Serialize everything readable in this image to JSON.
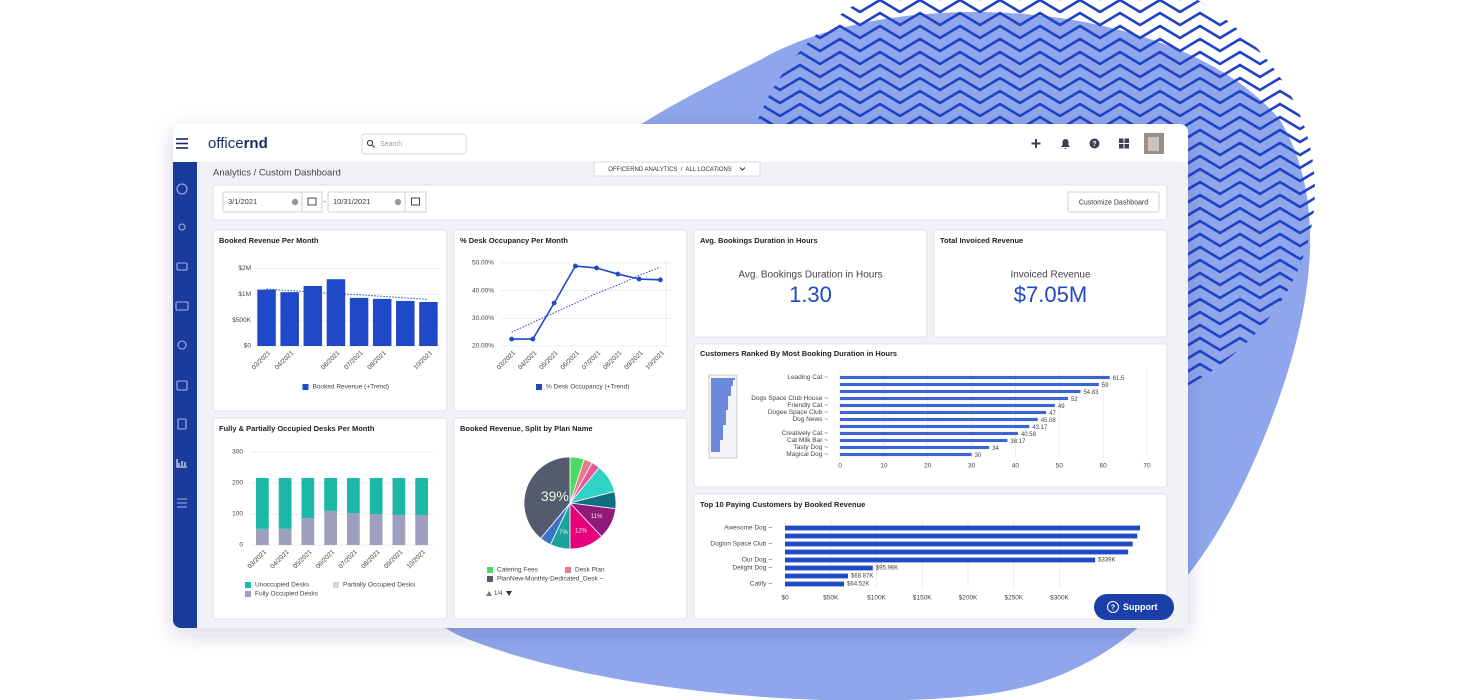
{
  "header": {
    "logo_light": "office",
    "logo_bold": "rnd",
    "search_placeholder": "Search"
  },
  "breadcrumb": "Analytics / Custom Dashboard",
  "scope": "OFFICERND ANALYTICS  /  ALL LOCATIONS",
  "filters": {
    "start_date": "3/1/2021",
    "separator": "-",
    "end_date": "10/31/2021",
    "button": "Customize Dashboard"
  },
  "support": "Support",
  "chart_data": [
    {
      "type": "bar",
      "title": "Booked Revenue Per Month",
      "categories": [
        "03/2021",
        "04/2021",
        null,
        "06/2021",
        "07/2021",
        "08/2021",
        null,
        "10/2021"
      ],
      "series": [
        {
          "name": "Booked Revenue (+Trend)",
          "color": "#1f49c7",
          "values": [
            1090000,
            1040000,
            1160000,
            1290000,
            930000,
            910000,
            870000,
            850000
          ],
          "trend": [
            1100000,
            1070000,
            1040000,
            1010000,
            990000,
            960000,
            930000,
            900000
          ]
        }
      ],
      "ylim": [
        0,
        1700000
      ],
      "yticks": [
        {
          "value": 0,
          "label": "$0"
        },
        {
          "value": 500000,
          "label": "$500K"
        },
        {
          "value": 1000000,
          "label": "$1M"
        },
        {
          "value": 1500000,
          "label": "$2M"
        }
      ],
      "grid": true
    },
    {
      "type": "line",
      "title": "% Desk Occupancy Per Month",
      "categories": [
        "03/2021",
        "04/2021",
        "05/2021",
        "06/2021",
        "07/2021",
        "08/2021",
        "09/2021",
        "10/2021"
      ],
      "series": [
        {
          "name": "% Desk Occupancy (+Trend)",
          "color": "#1f49c7",
          "values": [
            22.5,
            22.5,
            35.5,
            48.9,
            48.2,
            46,
            44.2,
            43.9
          ],
          "trend": [
            25,
            28.5,
            32,
            35.5,
            39,
            42,
            45.5,
            48.5
          ]
        }
      ],
      "ylim": [
        20,
        51.8
      ],
      "yticks": [
        {
          "value": 20,
          "label": "20.00%"
        },
        {
          "value": 30,
          "label": "30.00%"
        },
        {
          "value": 40,
          "label": "40.00%"
        },
        {
          "value": 50,
          "label": "50.00%"
        }
      ],
      "grid": true
    },
    {
      "type": "kpi",
      "title": "Avg. Bookings Duration in Hours",
      "label": "Avg. Bookings Duration in Hours",
      "value": "1.30"
    },
    {
      "type": "kpi",
      "title": "Total Invoiced Revenue",
      "label": "Invoiced Revenue",
      "value": "$7.05M"
    },
    {
      "type": "hbar",
      "title": "Customers Ranked By Most Booking Duration in Hours",
      "categories": [
        "Leading Cat ~",
        null,
        null,
        "Dogs Space Club House ~",
        "Friendly Cat ~",
        "Dogee Space Club ~",
        "Dog News ~",
        null,
        "Creatively Cat ~",
        "Cat Milk Bar ~",
        "Tasty Dog ~",
        "Magical Dog ~"
      ],
      "values": [
        61.5,
        59,
        54.83,
        52,
        49,
        47,
        45.08,
        43.17,
        40.58,
        38.17,
        34,
        30
      ],
      "color": "#3d63d4",
      "xlim": [
        0,
        70
      ],
      "xticks": [
        0,
        10,
        20,
        30,
        40,
        50,
        60,
        70
      ],
      "grid": true
    },
    {
      "type": "stacked-bar",
      "title": "Fully & Partially Occupied Desks Per Month",
      "categories": [
        "03/2021",
        "04/2021",
        "05/2021",
        "06/2021",
        "07/2021",
        "08/2021",
        "09/2021",
        "10/2021"
      ],
      "series": [
        {
          "name": "Unoccupied Desks",
          "color": "#1bb8a8",
          "values": [
            164,
            164,
            129,
            106,
            113,
            116,
            119,
            119
          ]
        },
        {
          "name": "Partially Occupied Desks",
          "color": "#d2d4e3",
          "values": [
            0,
            0,
            0,
            0,
            0,
            0,
            0,
            0
          ]
        },
        {
          "name": "Fully Occupied Desks",
          "color": "#9e9fbd",
          "values": [
            52,
            52,
            87,
            110,
            103,
            100,
            97,
            97
          ]
        }
      ],
      "ylim": [
        0,
        300
      ],
      "yticks": [
        0,
        100,
        200,
        300
      ],
      "grid": true
    },
    {
      "type": "pie",
      "title": "Booked Revenue, Split by Plan Name",
      "categories": [
        "Catering Fees",
        "Desk Plan",
        null,
        null,
        null,
        null,
        null,
        null,
        null,
        "PlanNew-Monthly-Dedicated_Desk ~"
      ],
      "values": [
        5,
        3,
        3,
        10,
        6,
        11,
        12,
        7,
        4,
        39
      ],
      "value_labels": [
        null,
        null,
        null,
        null,
        null,
        "11%",
        "12%",
        "7%",
        null,
        "39%"
      ],
      "colors": [
        "#4cd964",
        "#e57c85",
        "#e8569a",
        "#2ed3c6",
        "#0f6f80",
        "#8e1a7a",
        "#e6007a",
        "#1ba39c",
        "#3a73c8",
        "#555b6e"
      ],
      "legend_page": "1/4"
    },
    {
      "type": "hbar",
      "title": "Top 10 Paying Customers by Booked Revenue",
      "categories": [
        "Awesome Dog ~",
        null,
        "Doglon Space Club ~",
        null,
        "Our Dog ~",
        "Delight Dog ~",
        null,
        "Catify ~"
      ],
      "values": [
        388000,
        385000,
        380000,
        375000,
        339000,
        95960,
        68870,
        64520
      ],
      "value_labels": [
        null,
        null,
        null,
        null,
        "$339K",
        "$95.96K",
        "$68.87K",
        "$64.52K"
      ],
      "color": "#1f49c7",
      "xlim": [
        0,
        400000
      ],
      "xticks": [
        {
          "value": 0,
          "label": "$0"
        },
        {
          "value": 50000,
          "label": "$50K"
        },
        {
          "value": 100000,
          "label": "$100K"
        },
        {
          "value": 150000,
          "label": "$150K"
        },
        {
          "value": 200000,
          "label": "$200K"
        },
        {
          "value": 250000,
          "label": "$250K"
        },
        {
          "value": 300000,
          "label": "$300K"
        }
      ],
      "grid": true
    }
  ]
}
